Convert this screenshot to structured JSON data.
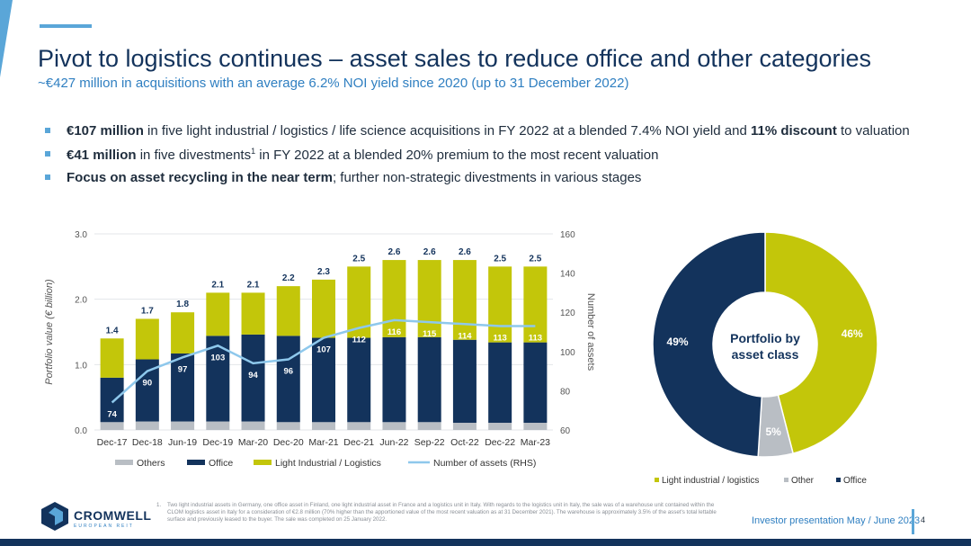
{
  "header": {
    "title": "Pivot to logistics continues – asset sales to reduce office and other categories",
    "subtitle": "~€427 million in acquisitions with an average 6.2% NOI yield since 2020 (up to 31 December 2022)"
  },
  "bullets": [
    {
      "bold": "€107 million",
      "t1": " in five light industrial / logistics / life science acquisitions in FY 2022 at a blended 7.4% NOI yield and ",
      "bold2": "11% discount",
      "t2": " to valuation"
    },
    {
      "bold": "€41 million",
      "t1": " in five divestments",
      "sup": "1",
      "t2": " in FY 2022 at a blended 20% premium to the most recent valuation"
    },
    {
      "bold": "Focus on asset recycling in the near term",
      "t1": "; further non-strategic divestments in various stages"
    }
  ],
  "colors": {
    "office": "#13335c",
    "logistics": "#c3c60a",
    "others": "#b9bec4",
    "line": "#8ec8ec",
    "accent": "#5aa6d8"
  },
  "chart_data": [
    {
      "type": "bar",
      "ylabel": "Portfolio value (€ billion)",
      "y2label": "Number of assets",
      "ylim": [
        0,
        3
      ],
      "y2lim": [
        60,
        160
      ],
      "yticks": [
        "0.0",
        "1.0",
        "2.0",
        "3.0"
      ],
      "y2ticks": [
        "60",
        "80",
        "100",
        "120",
        "140",
        "160"
      ],
      "categories": [
        "Dec-17",
        "Dec-18",
        "Jun-19",
        "Dec-19",
        "Mar-20",
        "Dec-20",
        "Mar-21",
        "Dec-21",
        "Jun-22",
        "Sep-22",
        "Oct-22",
        "Dec-22",
        "Mar-23"
      ],
      "series": [
        {
          "name": "Others",
          "values": [
            0.12,
            0.13,
            0.13,
            0.13,
            0.13,
            0.12,
            0.12,
            0.12,
            0.12,
            0.12,
            0.11,
            0.11,
            0.11
          ]
        },
        {
          "name": "Office",
          "values": [
            0.68,
            0.95,
            1.04,
            1.31,
            1.33,
            1.32,
            1.29,
            1.29,
            1.3,
            1.3,
            1.27,
            1.23,
            1.23
          ]
        },
        {
          "name": "Light Industrial / Logistics",
          "values": [
            0.6,
            0.62,
            0.63,
            0.66,
            0.64,
            0.76,
            0.89,
            1.09,
            1.18,
            1.18,
            1.22,
            1.16,
            1.16
          ]
        }
      ],
      "totals": [
        "1.4",
        "1.7",
        "1.8",
        "2.1",
        "2.1",
        "2.2",
        "2.3",
        "2.5",
        "2.6",
        "2.6",
        "2.6",
        "2.5",
        "2.5"
      ],
      "line": {
        "name": "Number of assets (RHS)",
        "values": [
          74,
          90,
          97,
          103,
          94,
          96,
          107,
          112,
          116,
          115,
          114,
          113,
          113
        ]
      },
      "legend_position": "bottom"
    },
    {
      "type": "pie",
      "title": "Portfolio by asset class",
      "slices": [
        {
          "name": "Light industrial / logistics",
          "value": 46,
          "label": "46%"
        },
        {
          "name": "Other",
          "value": 5,
          "label": "5%"
        },
        {
          "name": "Office",
          "value": 49,
          "label": "49%"
        }
      ],
      "legend_position": "bottom"
    }
  ],
  "footnote": {
    "num": "1.",
    "text": "Two light industrial assets in Germany, one office asset in Finland, one light industrial asset in France and a logistics unit in Italy. With regards to the logistics unit in Italy, the sale was of a warehouse unit contained within the CLOM logistics asset in Italy for a consideration of €2.8 million (70% higher than the apportioned value of the most recent valuation as at 31 December 2021). The warehouse is approximately 3.5% of the asset's total lettable surface and previously leased to the buyer. The sale was completed on 25 January 2022."
  },
  "footer": {
    "logo_text": "CROMWELL",
    "logo_sub": "EUROPEAN REIT",
    "presentation": "Investor presentation May / June 2023",
    "page": "4"
  }
}
